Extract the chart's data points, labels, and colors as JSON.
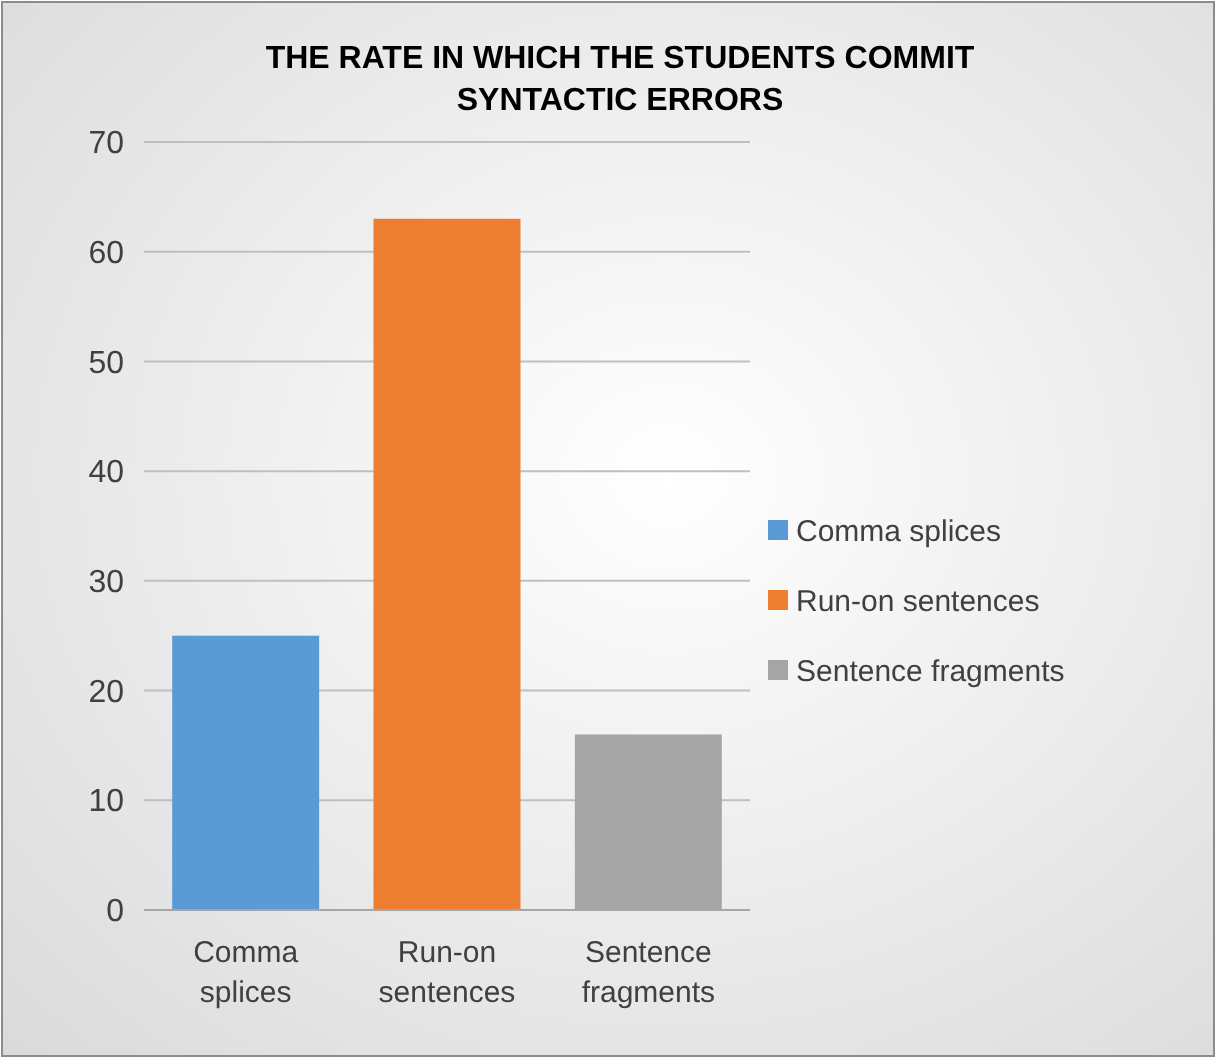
{
  "chart_data": {
    "type": "bar",
    "title": "THE RATE IN WHICH THE STUDENTS COMMIT SYNTACTIC ERRORS",
    "categories": [
      "Comma splices",
      "Run-on sentences",
      "Sentence fragments"
    ],
    "series": [
      {
        "name": "Comma splices",
        "color": "#5b9bd5",
        "values": [
          25,
          null,
          null
        ]
      },
      {
        "name": "Run-on sentences",
        "color": "#ed7d31",
        "values": [
          null,
          63,
          null
        ]
      },
      {
        "name": "Sentence fragments",
        "color": "#a5a5a5",
        "values": [
          null,
          null,
          16
        ]
      }
    ],
    "ylim": [
      0,
      70
    ],
    "yticks": [
      0,
      10,
      20,
      30,
      40,
      50,
      60,
      70
    ],
    "grid": "y",
    "legend": "right"
  }
}
